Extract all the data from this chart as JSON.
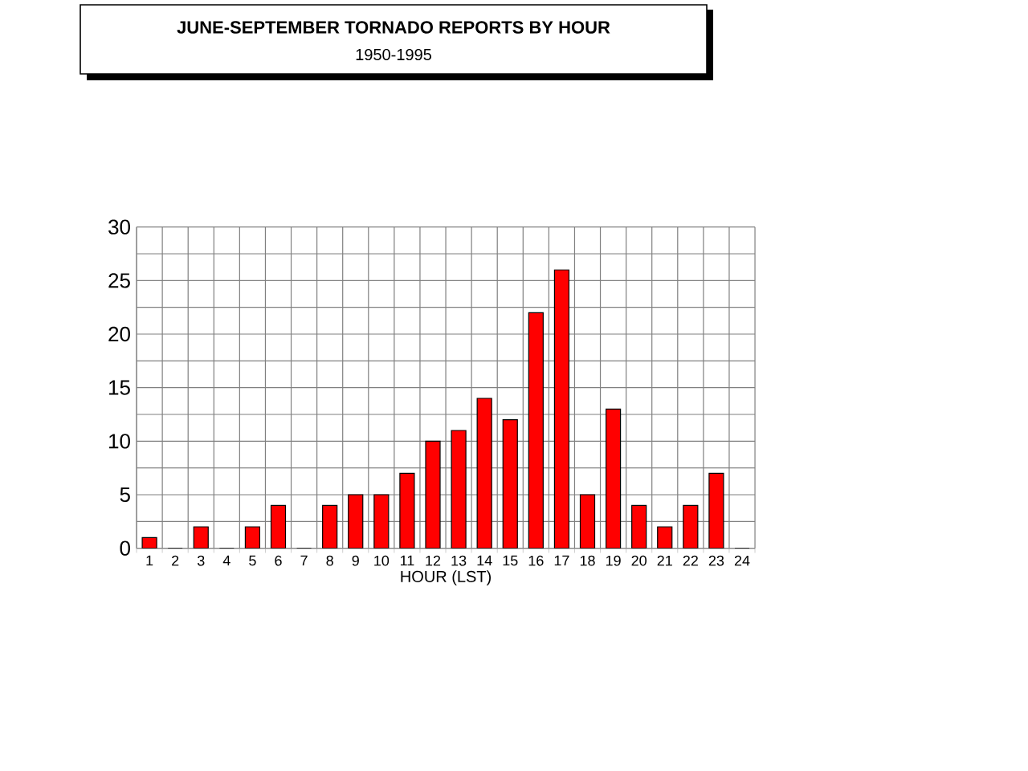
{
  "chart_data": {
    "type": "bar",
    "title": "JUNE-SEPTEMBER TORNADO REPORTS BY HOUR",
    "subtitle": "1950-1995",
    "xlabel": "HOUR (LST)",
    "categories": [
      "1",
      "2",
      "3",
      "4",
      "5",
      "6",
      "7",
      "8",
      "9",
      "10",
      "11",
      "12",
      "13",
      "14",
      "15",
      "16",
      "17",
      "18",
      "19",
      "20",
      "21",
      "22",
      "23",
      "24"
    ],
    "values": [
      1,
      0,
      2,
      0,
      2,
      4,
      0,
      4,
      5,
      5,
      7,
      10,
      11,
      14,
      12,
      22,
      26,
      5,
      13,
      4,
      2,
      4,
      7,
      0
    ],
    "color": "#ff0000",
    "ylim": [
      0,
      30
    ],
    "yticks": [
      0,
      {
        "value": 2.5,
        "label": null
      },
      5,
      {
        "value": 7.5,
        "label": null
      },
      10,
      {
        "value": 12.5,
        "label": null
      },
      15,
      {
        "value": 17.5,
        "label": null
      },
      20,
      {
        "value": 22.5,
        "label": null
      },
      25,
      {
        "value": 27.5,
        "label": null
      },
      30
    ],
    "grid": true
  }
}
